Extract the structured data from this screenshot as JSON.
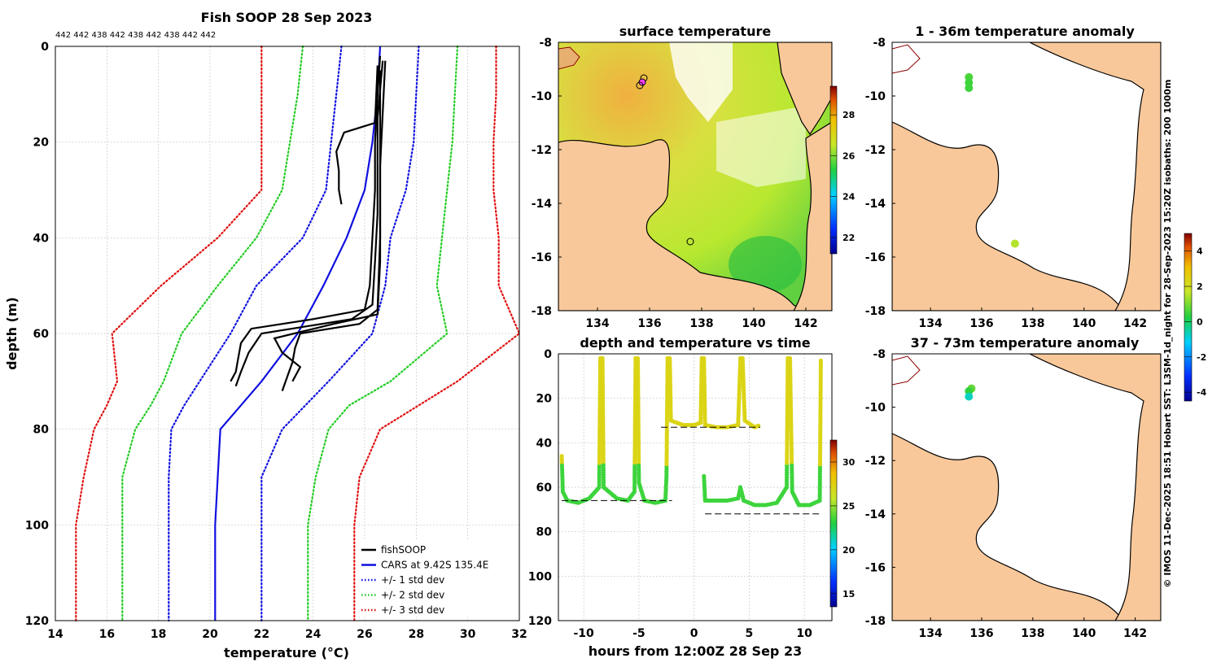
{
  "colors": {
    "land": "#f9c89a",
    "sea_white": "#ffffff",
    "cars": "#1010e0",
    "std1": "#1010e0",
    "std2": "#22cc22",
    "std3": "#e01010",
    "fish": "#000000"
  },
  "profile_chart": {
    "type": "line",
    "title": "Fish SOOP 28 Sep 2023",
    "header_numbers": "442 442 438 442 438 442 438 442 442",
    "xlabel": "temperature (°C)",
    "ylabel": "depth (m)",
    "xlim": [
      14,
      32
    ],
    "ylim": [
      0,
      120
    ],
    "xticks": [
      14,
      16,
      18,
      20,
      22,
      24,
      26,
      28,
      30,
      32
    ],
    "yticks": [
      0,
      20,
      40,
      60,
      80,
      100,
      120
    ],
    "depths": [
      0,
      10,
      20,
      30,
      40,
      50,
      60,
      70,
      75,
      80,
      90,
      100,
      120
    ],
    "cars": [
      26.6,
      26.5,
      26.3,
      26.0,
      25.3,
      24.4,
      23.4,
      22.0,
      21.2,
      20.4,
      20.3,
      20.2,
      20.2
    ],
    "std1_low": [
      25.1,
      24.9,
      24.7,
      24.5,
      23.6,
      21.8,
      20.8,
      19.6,
      19.0,
      18.5,
      18.4,
      18.4,
      18.4
    ],
    "std1_high": [
      28.1,
      28.0,
      27.9,
      27.6,
      27.0,
      26.8,
      26.3,
      24.6,
      23.7,
      22.8,
      22.0,
      22.0,
      22.0
    ],
    "std2_low": [
      23.6,
      23.4,
      23.1,
      22.8,
      21.8,
      20.3,
      18.9,
      18.2,
      17.7,
      17.1,
      16.6,
      16.6,
      16.6
    ],
    "std2_high": [
      29.6,
      29.5,
      29.4,
      29.2,
      29.0,
      28.8,
      29.2,
      27.0,
      25.4,
      24.6,
      24.1,
      23.8,
      23.8
    ],
    "std3_low": [
      22.0,
      22.0,
      22.0,
      22.0,
      20.3,
      18.1,
      16.2,
      16.4,
      16.0,
      15.5,
      15.1,
      14.8,
      14.8
    ],
    "std3_high": [
      31.1,
      31.1,
      31.0,
      31.0,
      31.2,
      31.2,
      32.0,
      29.6,
      28.1,
      26.6,
      25.8,
      25.6,
      25.6
    ],
    "legend": [
      {
        "label": "fishSOOP",
        "color": "#000000",
        "style": "solid"
      },
      {
        "label": "CARS at 9.42S 135.4E",
        "color": "#1010e0",
        "style": "solid"
      },
      {
        "label": "+/- 1 std dev",
        "color": "#1010e0",
        "style": "dotted"
      },
      {
        "label": "+/- 2 std dev",
        "color": "#22cc22",
        "style": "dotted"
      },
      {
        "label": "+/- 3 std dev",
        "color": "#e01010",
        "style": "dotted"
      }
    ],
    "fish_profiles": [
      {
        "depths": [
          2,
          10,
          20,
          30,
          40,
          50,
          55,
          57,
          59,
          62,
          65,
          68,
          70
        ],
        "temps": [
          26.6,
          26.5,
          26.4,
          26.4,
          26.3,
          26.2,
          26.0,
          24.0,
          21.6,
          21.2,
          21.1,
          21.0,
          20.8
        ]
      },
      {
        "depths": [
          3,
          15,
          25,
          35,
          45,
          54,
          57,
          60,
          64,
          68,
          71
        ],
        "temps": [
          26.7,
          26.5,
          26.5,
          26.5,
          26.4,
          26.3,
          25.5,
          22.0,
          21.5,
          21.2,
          21.0
        ]
      },
      {
        "depths": [
          4,
          16,
          18,
          22,
          26,
          30,
          33
        ],
        "temps": [
          26.5,
          26.4,
          25.2,
          24.9,
          25.0,
          25.0,
          25.1
        ]
      },
      {
        "depths": [
          5,
          20,
          40,
          55,
          58,
          60,
          63,
          66,
          69,
          72
        ],
        "temps": [
          26.6,
          26.6,
          26.6,
          26.5,
          25.8,
          23.5,
          23.3,
          23.2,
          23.0,
          22.8
        ]
      },
      {
        "depths": [
          3,
          25,
          45,
          56,
          58,
          61,
          64,
          67,
          70
        ],
        "temps": [
          26.8,
          26.6,
          26.6,
          26.5,
          24.8,
          22.5,
          22.8,
          23.5,
          23.2
        ]
      }
    ]
  },
  "sst_map": {
    "title": "surface temperature",
    "xticks": [
      134,
      136,
      138,
      140,
      142
    ],
    "yticks": [
      -8,
      -10,
      -12,
      -14,
      -16,
      -18
    ],
    "xlim": [
      132.5,
      143
    ],
    "ylim": [
      -18,
      -8
    ],
    "colorbar_ticks": [
      22,
      24,
      26,
      28
    ],
    "colorbar_range": [
      21.2,
      29.4
    ]
  },
  "anom_map_1": {
    "title": "1 - 36m temperature anomaly",
    "xticks": [
      134,
      136,
      138,
      140,
      142
    ],
    "yticks": [
      -8,
      -10,
      -12,
      -14,
      -16,
      -18
    ],
    "points": [
      {
        "lon": 135.5,
        "lat": -9.3,
        "anom": 0.6
      },
      {
        "lon": 135.5,
        "lat": -9.5,
        "anom": 0.5
      },
      {
        "lon": 135.5,
        "lat": -9.7,
        "anom": 0.5
      },
      {
        "lon": 137.3,
        "lat": -15.5,
        "anom": 1.5
      }
    ]
  },
  "anom_map_2": {
    "title": "37 - 73m temperature anomaly",
    "xticks": [
      134,
      136,
      138,
      140,
      142
    ],
    "yticks": [
      -8,
      -10,
      -12,
      -14,
      -16,
      -18
    ],
    "points": [
      {
        "lon": 135.6,
        "lat": -9.3,
        "anom": 0.8
      },
      {
        "lon": 135.5,
        "lat": -9.4,
        "anom": 0.4
      },
      {
        "lon": 135.5,
        "lat": -9.6,
        "anom": -0.7
      }
    ]
  },
  "anom_colorbar": {
    "ticks": [
      -4,
      -2,
      0,
      2,
      4
    ],
    "range": [
      -4.5,
      5
    ]
  },
  "time_chart": {
    "type": "scatter",
    "title": "depth and temperature vs time",
    "xlabel": "hours from 12:00Z 28 Sep 23",
    "xlim": [
      -12.3,
      12.5
    ],
    "ylim": [
      0,
      120
    ],
    "xticks": [
      -10,
      -5,
      0,
      5,
      10
    ],
    "yticks": [
      0,
      20,
      40,
      60,
      80,
      100,
      120
    ],
    "colorbar_ticks": [
      15,
      20,
      25,
      30
    ],
    "colorbar_range": [
      13.5,
      32.5
    ],
    "bottom_lines": [
      {
        "x": [
          -12,
          -2
        ],
        "depth": 66
      },
      {
        "x": [
          -3,
          6
        ],
        "depth": 33
      },
      {
        "x": [
          1,
          11.5
        ],
        "depth": 72
      }
    ]
  },
  "side_note": "© IMOS 11-Dec-2025 18:51 Hobart SST: L3SM-1d_night for 28-Sep-2023 15:20Z isobaths: 200  1000m"
}
